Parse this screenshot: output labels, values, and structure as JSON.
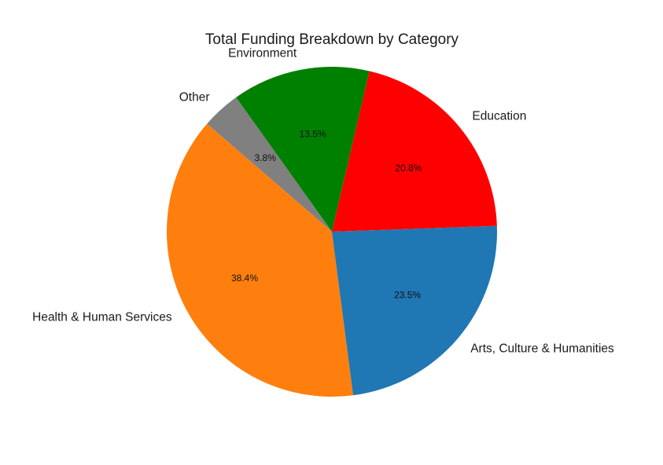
{
  "chart_data": {
    "type": "pie",
    "title": "Total Funding Breakdown by Category",
    "start_angle_deg": 2,
    "direction": "counterclockwise",
    "slices": [
      {
        "label": "Education",
        "pct_label": "20.8%",
        "value": 20.8,
        "color": "#ff0000"
      },
      {
        "label": "Environment",
        "pct_label": "13.5%",
        "value": 13.5,
        "color": "#008000"
      },
      {
        "label": "Other",
        "pct_label": "3.8%",
        "value": 3.8,
        "color": "#808080"
      },
      {
        "label": "Health & Human Services",
        "pct_label": "38.4%",
        "value": 38.4,
        "color": "#ff7f0e"
      },
      {
        "label": "Arts, Culture & Humanities",
        "pct_label": "23.5%",
        "value": 23.5,
        "color": "#1f77b4"
      }
    ]
  }
}
